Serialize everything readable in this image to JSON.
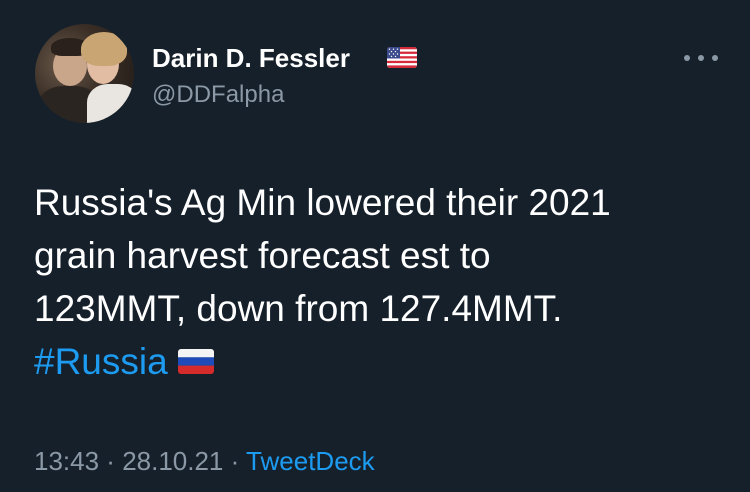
{
  "author": {
    "display_name": "Darin D. Fessler",
    "handle": "@DDFalpha",
    "flag_icon": "us-flag-emoji"
  },
  "tweet": {
    "lines": [
      "Russia's Ag Min lowered their 2021",
      "grain harvest forecast est to",
      "123MMT, down from 127.4MMT."
    ],
    "hashtag": "#Russia",
    "hashtag_flag_icon": "russia-flag-emoji"
  },
  "meta": {
    "time": "13:43",
    "separator": " · ",
    "date": "28.10.21",
    "source": "TweetDeck"
  },
  "colors": {
    "background": "#15202b",
    "primary_text": "#ffffff",
    "secondary_text": "#8b98a5",
    "accent": "#1d9bf0"
  }
}
